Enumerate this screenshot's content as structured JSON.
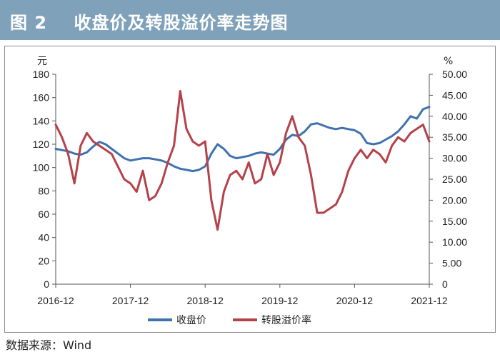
{
  "header": {
    "title": "图 2    收盘价及转股溢价率走势图"
  },
  "source": "数据来源：Wind",
  "colors": {
    "header_bg": "#7fa2ba",
    "series_close": "#3f72af",
    "series_premium": "#b5414a"
  },
  "chart_data": {
    "type": "line",
    "title": "收盘价及转股溢价率走势图",
    "left_unit": "元",
    "right_unit": "%",
    "x_ticks": [
      "2016-12",
      "2017-12",
      "2018-12",
      "2019-12",
      "2020-12",
      "2021-12"
    ],
    "x_range": [
      "2016-12",
      "2021-12"
    ],
    "y_left": {
      "range": [
        0,
        180
      ],
      "ticks": [
        "0",
        "20",
        "40",
        "60",
        "80",
        "100",
        "120",
        "140",
        "160",
        "180"
      ]
    },
    "y_right": {
      "range": [
        0,
        50
      ],
      "ticks": [
        "0",
        "5.00",
        "10.00",
        "15.00",
        "20.00",
        "25.00",
        "30.00",
        "35.00",
        "40.00",
        "45.00",
        "50.00"
      ]
    },
    "grid": false,
    "legend_position": "bottom",
    "series": [
      {
        "name": "收盘价",
        "axis": "left",
        "x": [
          "2016-12",
          "2017-01",
          "2017-02",
          "2017-03",
          "2017-04",
          "2017-05",
          "2017-06",
          "2017-07",
          "2017-08",
          "2017-09",
          "2017-10",
          "2017-11",
          "2017-12",
          "2018-01",
          "2018-02",
          "2018-03",
          "2018-04",
          "2018-05",
          "2018-06",
          "2018-07",
          "2018-08",
          "2018-09",
          "2018-10",
          "2018-11",
          "2018-12",
          "2019-01",
          "2019-02",
          "2019-03",
          "2019-04",
          "2019-05",
          "2019-06",
          "2019-07",
          "2019-08",
          "2019-09",
          "2019-10",
          "2019-11",
          "2019-12",
          "2020-01",
          "2020-02",
          "2020-03",
          "2020-04",
          "2020-05",
          "2020-06",
          "2020-07",
          "2020-08",
          "2020-09",
          "2020-10",
          "2020-11",
          "2020-12",
          "2021-01",
          "2021-02",
          "2021-03",
          "2021-04",
          "2021-05",
          "2021-06",
          "2021-07",
          "2021-08",
          "2021-09",
          "2021-10",
          "2021-11",
          "2021-12"
        ],
        "values": [
          116,
          115,
          114,
          112,
          111,
          113,
          118,
          122,
          120,
          116,
          112,
          108,
          106,
          107,
          108,
          108,
          107,
          106,
          104,
          101,
          99,
          98,
          97,
          98,
          101,
          112,
          120,
          116,
          110,
          108,
          109,
          110,
          112,
          113,
          112,
          111,
          116,
          124,
          128,
          127,
          131,
          137,
          138,
          136,
          134,
          133,
          134,
          133,
          132,
          129,
          121,
          120,
          121,
          124,
          127,
          131,
          137,
          144,
          142,
          150,
          152
        ]
      },
      {
        "name": "转股溢价率",
        "axis": "right",
        "x": [
          "2016-12",
          "2017-01",
          "2017-02",
          "2017-03",
          "2017-04",
          "2017-05",
          "2017-06",
          "2017-07",
          "2017-08",
          "2017-09",
          "2017-10",
          "2017-11",
          "2017-12",
          "2018-01",
          "2018-02",
          "2018-03",
          "2018-04",
          "2018-05",
          "2018-06",
          "2018-07",
          "2018-08",
          "2018-09",
          "2018-10",
          "2018-11",
          "2018-12",
          "2019-01",
          "2019-02",
          "2019-03",
          "2019-04",
          "2019-05",
          "2019-06",
          "2019-07",
          "2019-08",
          "2019-09",
          "2019-10",
          "2019-11",
          "2019-12",
          "2020-01",
          "2020-02",
          "2020-03",
          "2020-04",
          "2020-05",
          "2020-06",
          "2020-07",
          "2020-08",
          "2020-09",
          "2020-10",
          "2020-11",
          "2020-12",
          "2021-01",
          "2021-02",
          "2021-03",
          "2021-04",
          "2021-05",
          "2021-06",
          "2021-07",
          "2021-08",
          "2021-09",
          "2021-10",
          "2021-11",
          "2021-12"
        ],
        "values": [
          38,
          35,
          31,
          24,
          33,
          36,
          34,
          33,
          32,
          31,
          28,
          25,
          24,
          22,
          27,
          20,
          21,
          24,
          29,
          33,
          46,
          37,
          34,
          33,
          34,
          20,
          13,
          22,
          26,
          27,
          25,
          29,
          24,
          25,
          31,
          26,
          29,
          36,
          40,
          35,
          33,
          26,
          17,
          17,
          18,
          19,
          22,
          27,
          30,
          32,
          30,
          32,
          31,
          29,
          33,
          35,
          34,
          36,
          37,
          38,
          34
        ]
      }
    ]
  }
}
